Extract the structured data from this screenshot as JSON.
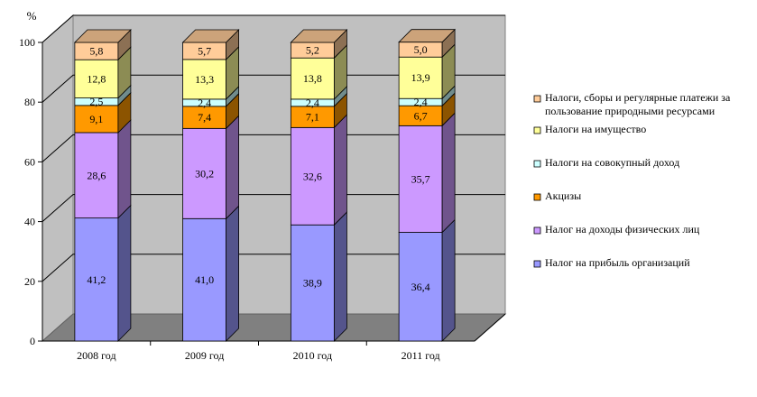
{
  "chart_data": {
    "type": "bar",
    "stacked": true,
    "three_d": true,
    "ylabel": "%",
    "ylim": [
      0,
      100
    ],
    "yticks": [
      0,
      20,
      40,
      60,
      80,
      100
    ],
    "grid": true,
    "legend_position": "right",
    "categories": [
      "2008 год",
      "2009 год",
      "2010 год",
      "2011 год"
    ],
    "series": [
      {
        "name": "Налог на прибыль организаций",
        "color": "#9999ff",
        "values": [
          41.2,
          41.0,
          38.9,
          36.4
        ],
        "labels": [
          "41,2",
          "41,0",
          "38,9",
          "36,4"
        ]
      },
      {
        "name": "Налог на доходы физических лиц",
        "color": "#cc99ff",
        "values": [
          28.6,
          30.2,
          32.6,
          35.7
        ],
        "labels": [
          "28,6",
          "30,2",
          "32,6",
          "35,7"
        ]
      },
      {
        "name": "Акцизы",
        "color": "#ff9900",
        "values": [
          9.1,
          7.4,
          7.1,
          6.7
        ],
        "labels": [
          "9,1",
          "7,4",
          "7,1",
          "6,7"
        ]
      },
      {
        "name": "Налоги на совокупный доход",
        "color": "#ccffff",
        "values": [
          2.5,
          2.4,
          2.4,
          2.4
        ],
        "labels": [
          "2,5",
          "2,4",
          "2,4",
          "2,4"
        ]
      },
      {
        "name": "Налоги на имущество",
        "color": "#ffff99",
        "values": [
          12.8,
          13.3,
          13.8,
          13.9
        ],
        "labels": [
          "12,8",
          "13,3",
          "13,8",
          "13,9"
        ]
      },
      {
        "name": "Налоги, сборы и регулярные платежи за пользование природными ресурсами",
        "color": "#ffcc99",
        "values": [
          5.8,
          5.7,
          5.2,
          5.0
        ],
        "labels": [
          "5,8",
          "5,7",
          "5,2",
          "5,0"
        ],
        "legend_lines": [
          "Налоги, сборы и регулярные платежи за",
          "пользование природными ресурсами"
        ]
      }
    ]
  }
}
